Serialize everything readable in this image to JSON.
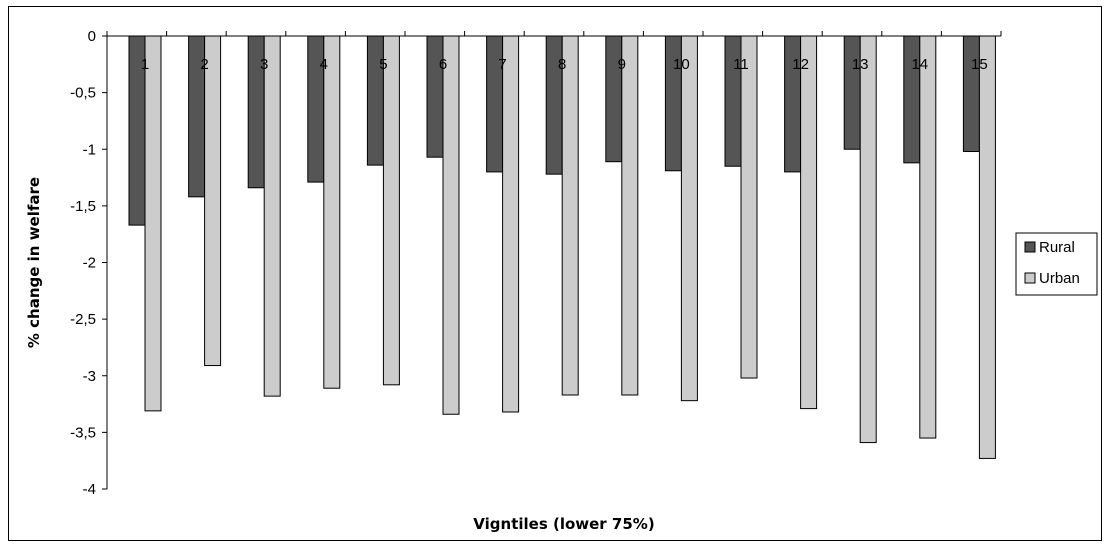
{
  "chart_data": {
    "type": "bar",
    "title": "",
    "xlabel": "Vigntiles (lower 75%)",
    "ylabel": "% change in welfare",
    "ylim": [
      -4,
      0
    ],
    "yticks": [
      0,
      -0.5,
      -1,
      -1.5,
      -2,
      -2.5,
      -3,
      -3.5,
      -4
    ],
    "ytick_labels": [
      "0",
      "-0,5",
      "-1",
      "-1,5",
      "-2",
      "-2,5",
      "-3",
      "-3,5",
      "-4"
    ],
    "categories": [
      "1",
      "2",
      "3",
      "4",
      "5",
      "6",
      "7",
      "8",
      "9",
      "10",
      "11",
      "12",
      "13",
      "14",
      "15"
    ],
    "series": [
      {
        "name": "Rural",
        "color": "#555555",
        "values": [
          -1.67,
          -1.42,
          -1.34,
          -1.29,
          -1.14,
          -1.07,
          -1.2,
          -1.22,
          -1.11,
          -1.19,
          -1.15,
          -1.2,
          -1.0,
          -1.12,
          -1.02
        ]
      },
      {
        "name": "Urban",
        "color": "#cccccc",
        "values": [
          -3.31,
          -2.91,
          -3.18,
          -3.11,
          -3.08,
          -3.34,
          -3.32,
          -3.17,
          -3.17,
          -3.22,
          -3.02,
          -3.29,
          -3.59,
          -3.55,
          -3.73
        ]
      }
    ],
    "grid": false,
    "legend": "right"
  }
}
